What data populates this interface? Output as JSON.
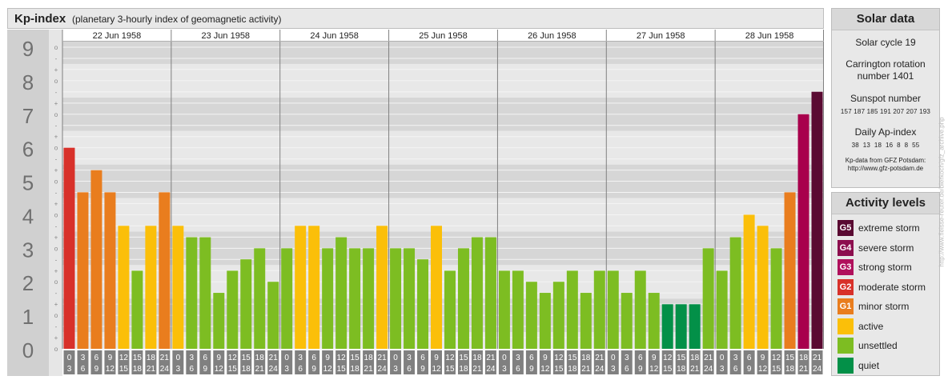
{
  "header": {
    "title": "Kp-index",
    "subtitle": "(planetary 3-hourly index of geomagnetic activity)"
  },
  "solar": {
    "title": "Solar data",
    "cycle": "Solar cycle 19",
    "carrington_line1": "Carrington rotation",
    "carrington_line2": "number 1401",
    "sunspot_title": "Sunspot number",
    "sunspot_values": "157 187 185 191 207 207 193",
    "ap_title": "Daily Ap-index",
    "ap_values": "38  13  18  16  8  8  55",
    "credit_line1": "Kp-data from GFZ Potsdam:",
    "credit_line2": "http://www.gfz-potsdam.de"
  },
  "activity": {
    "title": "Activity levels",
    "items": [
      {
        "code": "G5",
        "label": "extreme storm",
        "color": "#5a0a32"
      },
      {
        "code": "G4",
        "label": "severe storm",
        "color": "#8c0e4e"
      },
      {
        "code": "G3",
        "label": "strong storm",
        "color": "#b0105c"
      },
      {
        "code": "G2",
        "label": "moderate storm",
        "color": "#d8312a"
      },
      {
        "code": "G1",
        "label": "minor storm",
        "color": "#e97d1e"
      },
      {
        "code": "",
        "label": "active",
        "color": "#fbbf09"
      },
      {
        "code": "",
        "label": "unsettled",
        "color": "#7dbd22"
      },
      {
        "code": "",
        "label": "quiet",
        "color": "#039048"
      }
    ]
  },
  "watermark": "http://www.fleisse-reuter.de/bierkoch/gfz_archive.php",
  "chart_data": {
    "type": "bar",
    "ylim": [
      0,
      9
    ],
    "y_ticks": [
      "0",
      "1",
      "2",
      "3",
      "4",
      "5",
      "6",
      "7",
      "8",
      "9"
    ],
    "y_minor_ticks": [
      "o",
      "+",
      "-"
    ],
    "days": [
      "22 Jun 1958",
      "23 Jun 1958",
      "24 Jun 1958",
      "25 Jun 1958",
      "26 Jun 1958",
      "27 Jun 1958",
      "28 Jun 1958"
    ],
    "hours_start": [
      "0",
      "3",
      "6",
      "9",
      "12",
      "15",
      "18",
      "21"
    ],
    "hours_end": [
      "3",
      "6",
      "9",
      "12",
      "15",
      "18",
      "21",
      "24"
    ],
    "values": [
      [
        6.0,
        4.67,
        5.33,
        4.67,
        3.67,
        2.33,
        3.67,
        4.67
      ],
      [
        3.67,
        3.33,
        3.33,
        1.67,
        2.33,
        2.67,
        3.0,
        2.0
      ],
      [
        3.0,
        3.67,
        3.67,
        3.0,
        3.33,
        3.0,
        3.0,
        3.67
      ],
      [
        3.0,
        3.0,
        2.67,
        3.67,
        2.33,
        3.0,
        3.33,
        3.33
      ],
      [
        2.33,
        2.33,
        2.0,
        1.67,
        2.0,
        2.33,
        1.67,
        2.33
      ],
      [
        2.33,
        1.67,
        2.33,
        1.67,
        1.33,
        1.33,
        1.33,
        3.0
      ],
      [
        2.33,
        3.33,
        4.0,
        3.67,
        3.0,
        4.67,
        7.0,
        7.67
      ]
    ]
  }
}
